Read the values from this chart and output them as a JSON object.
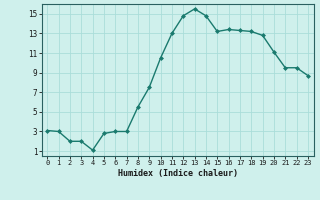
{
  "x": [
    0,
    1,
    2,
    3,
    4,
    5,
    6,
    7,
    8,
    9,
    10,
    11,
    12,
    13,
    14,
    15,
    16,
    17,
    18,
    19,
    20,
    21,
    22,
    23
  ],
  "y": [
    3.1,
    3.0,
    2.0,
    2.0,
    1.1,
    2.8,
    3.0,
    3.0,
    5.5,
    7.5,
    10.5,
    13.0,
    14.8,
    15.5,
    14.8,
    13.2,
    13.4,
    13.3,
    13.2,
    12.8,
    11.1,
    9.5,
    9.5,
    8.7
  ],
  "line_color": "#1a7a6e",
  "marker": "D",
  "marker_size": 2.0,
  "bg_color": "#cff0ec",
  "grid_color": "#aaddda",
  "xlabel": "Humidex (Indice chaleur)",
  "ylim": [
    0.5,
    16
  ],
  "xlim": [
    -0.5,
    23.5
  ],
  "yticks": [
    1,
    3,
    5,
    7,
    9,
    11,
    13,
    15
  ],
  "xticks": [
    0,
    1,
    2,
    3,
    4,
    5,
    6,
    7,
    8,
    9,
    10,
    11,
    12,
    13,
    14,
    15,
    16,
    17,
    18,
    19,
    20,
    21,
    22,
    23
  ]
}
